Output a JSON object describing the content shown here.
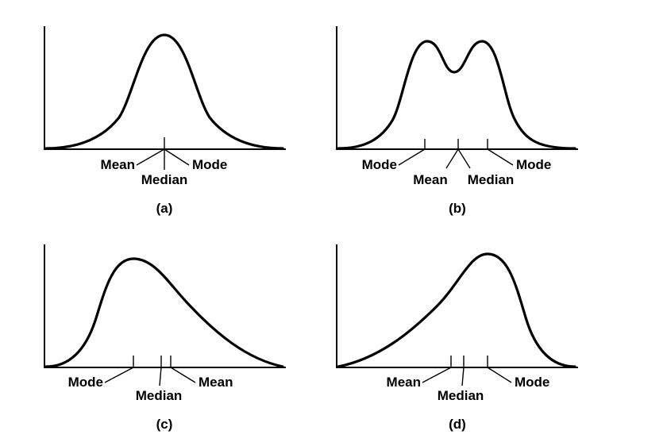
{
  "panels": [
    {
      "caption": "(a)",
      "labels": [
        "Mean",
        "Median",
        "Mode"
      ]
    },
    {
      "caption": "(b)",
      "labels": [
        "Mode",
        "Mean",
        "Median",
        "Mode"
      ]
    },
    {
      "caption": "(c)",
      "labels": [
        "Mode",
        "Median",
        "Mean"
      ]
    },
    {
      "caption": "(d)",
      "labels": [
        "Mean",
        "Median",
        "Mode"
      ]
    }
  ]
}
